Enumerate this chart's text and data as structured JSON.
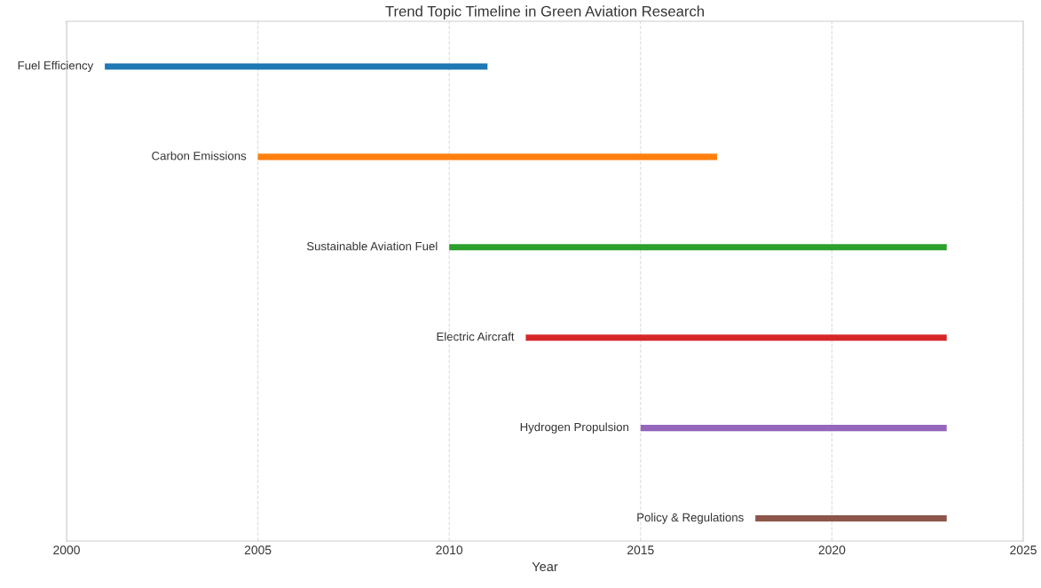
{
  "chart_data": {
    "type": "bar",
    "orientation": "horizontal",
    "title": "Trend Topic Timeline in Green Aviation Research",
    "xlabel": "Year",
    "categories": [
      "Fuel Efficiency",
      "Carbon Emissions",
      "Sustainable Aviation Fuel",
      "Electric Aircraft",
      "Hydrogen Propulsion",
      "Policy & Regulations"
    ],
    "base": [
      2001,
      2005,
      2010,
      2012,
      2015,
      2018
    ],
    "values": [
      10,
      12,
      13,
      11,
      8,
      5
    ],
    "colors": [
      "#1f77b4",
      "#ff7f0e",
      "#2ca02c",
      "#d62728",
      "#9467bd",
      "#8c564b"
    ],
    "xlim": [
      2000,
      2025
    ],
    "xticks": [
      2000,
      2005,
      2010,
      2015,
      2020,
      2025
    ],
    "grid": "x",
    "line_style": "dashed",
    "tick_labels": "x"
  }
}
